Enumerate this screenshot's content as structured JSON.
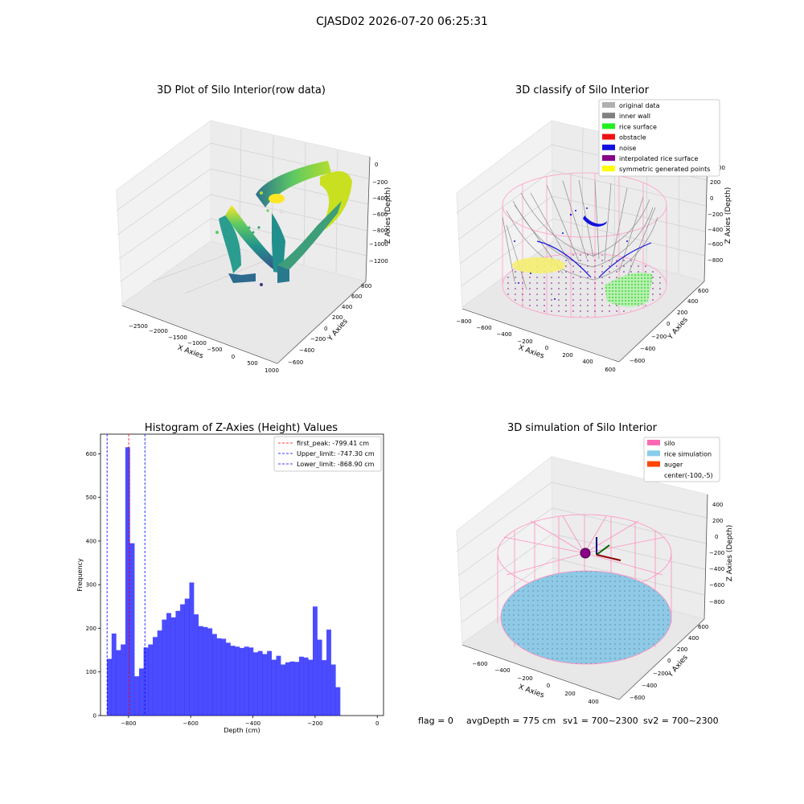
{
  "figure": {
    "suptitle": "CJASD02 2026-07-20 06:25:31",
    "footer": {
      "flag": "flag = 0",
      "avg": "avgDepth = 775 cm",
      "sv1": "sv1 = 700~2300",
      "sv2": "sv2 = 700~2300"
    }
  },
  "chart_data": [
    {
      "type": "scatter",
      "panel": "raw-3d",
      "title": "3D Plot of Silo Interior(row data)",
      "xlabel": "X Axies",
      "ylabel": "Y Axies",
      "zlabel": "Z Axies (Depth)",
      "x_ticks": [
        "−2500",
        "−2000",
        "−1500",
        "−1000",
        "−500",
        "0",
        "500",
        "1000"
      ],
      "y_ticks": [
        "−600",
        "−400",
        "−200",
        "0",
        "200",
        "400",
        "600",
        "800"
      ],
      "z_ticks": [
        "0",
        "−200",
        "−400",
        "−600",
        "−800",
        "−1000",
        "−1200"
      ],
      "colormap": [
        "#440154",
        "#3b528b",
        "#21918c",
        "#5ec962",
        "#fde725"
      ]
    },
    {
      "type": "scatter",
      "panel": "classify-3d",
      "title": "3D classify of Silo Interior",
      "xlabel": "X Axies",
      "ylabel": "Y Axies",
      "zlabel": "Z Axies (Depth)",
      "x_ticks": [
        "−800",
        "−600",
        "−400",
        "−200",
        "0",
        "200",
        "400",
        "600"
      ],
      "y_ticks": [
        "−600",
        "−400",
        "−200",
        "0",
        "200",
        "400",
        "600"
      ],
      "z_ticks": [
        "200",
        "0",
        "−200",
        "−400",
        "−600",
        "−800"
      ],
      "z_ticks_partial": "00",
      "legend": [
        {
          "label": "original data",
          "color": "#b0b0b0"
        },
        {
          "label": "inner wall",
          "color": "#808080"
        },
        {
          "label": "rice surface",
          "color": "#22ee22"
        },
        {
          "label": "obstacle",
          "color": "#ee1111"
        },
        {
          "label": "noise",
          "color": "#1111dd"
        },
        {
          "label": "interpolated rice surface",
          "color": "#880088"
        },
        {
          "label": "symmetric generated points",
          "color": "#ffff00"
        }
      ],
      "legend_position": "top-right"
    },
    {
      "type": "bar",
      "panel": "histogram",
      "title": "Histogram of Z-Axies (Height) Values",
      "xlabel": "Depth (cm)",
      "ylabel": "Frequency",
      "xlim": [
        -890,
        20
      ],
      "ylim": [
        0,
        645
      ],
      "x_ticks": [
        -800,
        -600,
        -400,
        -200,
        0
      ],
      "x_tick_labels": [
        "−800",
        "−600",
        "−400",
        "−200",
        "0"
      ],
      "y_ticks": [
        0,
        100,
        200,
        300,
        400,
        500,
        600
      ],
      "bar_color": "#0000ff",
      "bin_edges_start": -869,
      "bin_width": 14.7,
      "values": [
        130,
        188,
        150,
        163,
        615,
        395,
        90,
        108,
        156,
        163,
        180,
        195,
        220,
        235,
        225,
        240,
        255,
        268,
        305,
        232,
        205,
        203,
        200,
        187,
        177,
        176,
        167,
        160,
        158,
        155,
        158,
        156,
        145,
        148,
        141,
        148,
        128,
        137,
        117,
        122,
        124,
        123,
        135,
        133,
        128,
        250,
        174,
        127,
        197,
        117,
        65
      ],
      "vlines": [
        {
          "x": -799.41,
          "label": "first_peak: -799.41 cm",
          "color": "#ff0000"
        },
        {
          "x": -747.3,
          "label": "Upper_limit: -747.30 cm",
          "color": "#0000ff"
        },
        {
          "x": -868.9,
          "label": "Lower_limit: -868.90 cm",
          "color": "#0000ff"
        }
      ],
      "legend_position": "top-right"
    },
    {
      "type": "scatter",
      "panel": "simulation-3d",
      "title": "3D simulation of Silo Interior",
      "xlabel": "X Axies",
      "ylabel": "Y Axies",
      "zlabel": "Z Axies (Depth)",
      "x_ticks": [
        "−600",
        "−400",
        "−200",
        "0",
        "200",
        "400"
      ],
      "y_ticks": [
        "−600",
        "−400",
        "−200",
        "0",
        "200",
        "400",
        "600"
      ],
      "z_ticks": [
        "400",
        "200",
        "0",
        "−200",
        "−400",
        "−600",
        "−800"
      ],
      "legend": [
        {
          "label": "silo",
          "color": "#ff69b4"
        },
        {
          "label": "rice simulation",
          "color": "#87ceeb"
        },
        {
          "label": "auger",
          "color": "#ff4500"
        },
        {
          "label": "center(-100,-5)",
          "color": ""
        }
      ],
      "legend_position": "top-right"
    }
  ]
}
